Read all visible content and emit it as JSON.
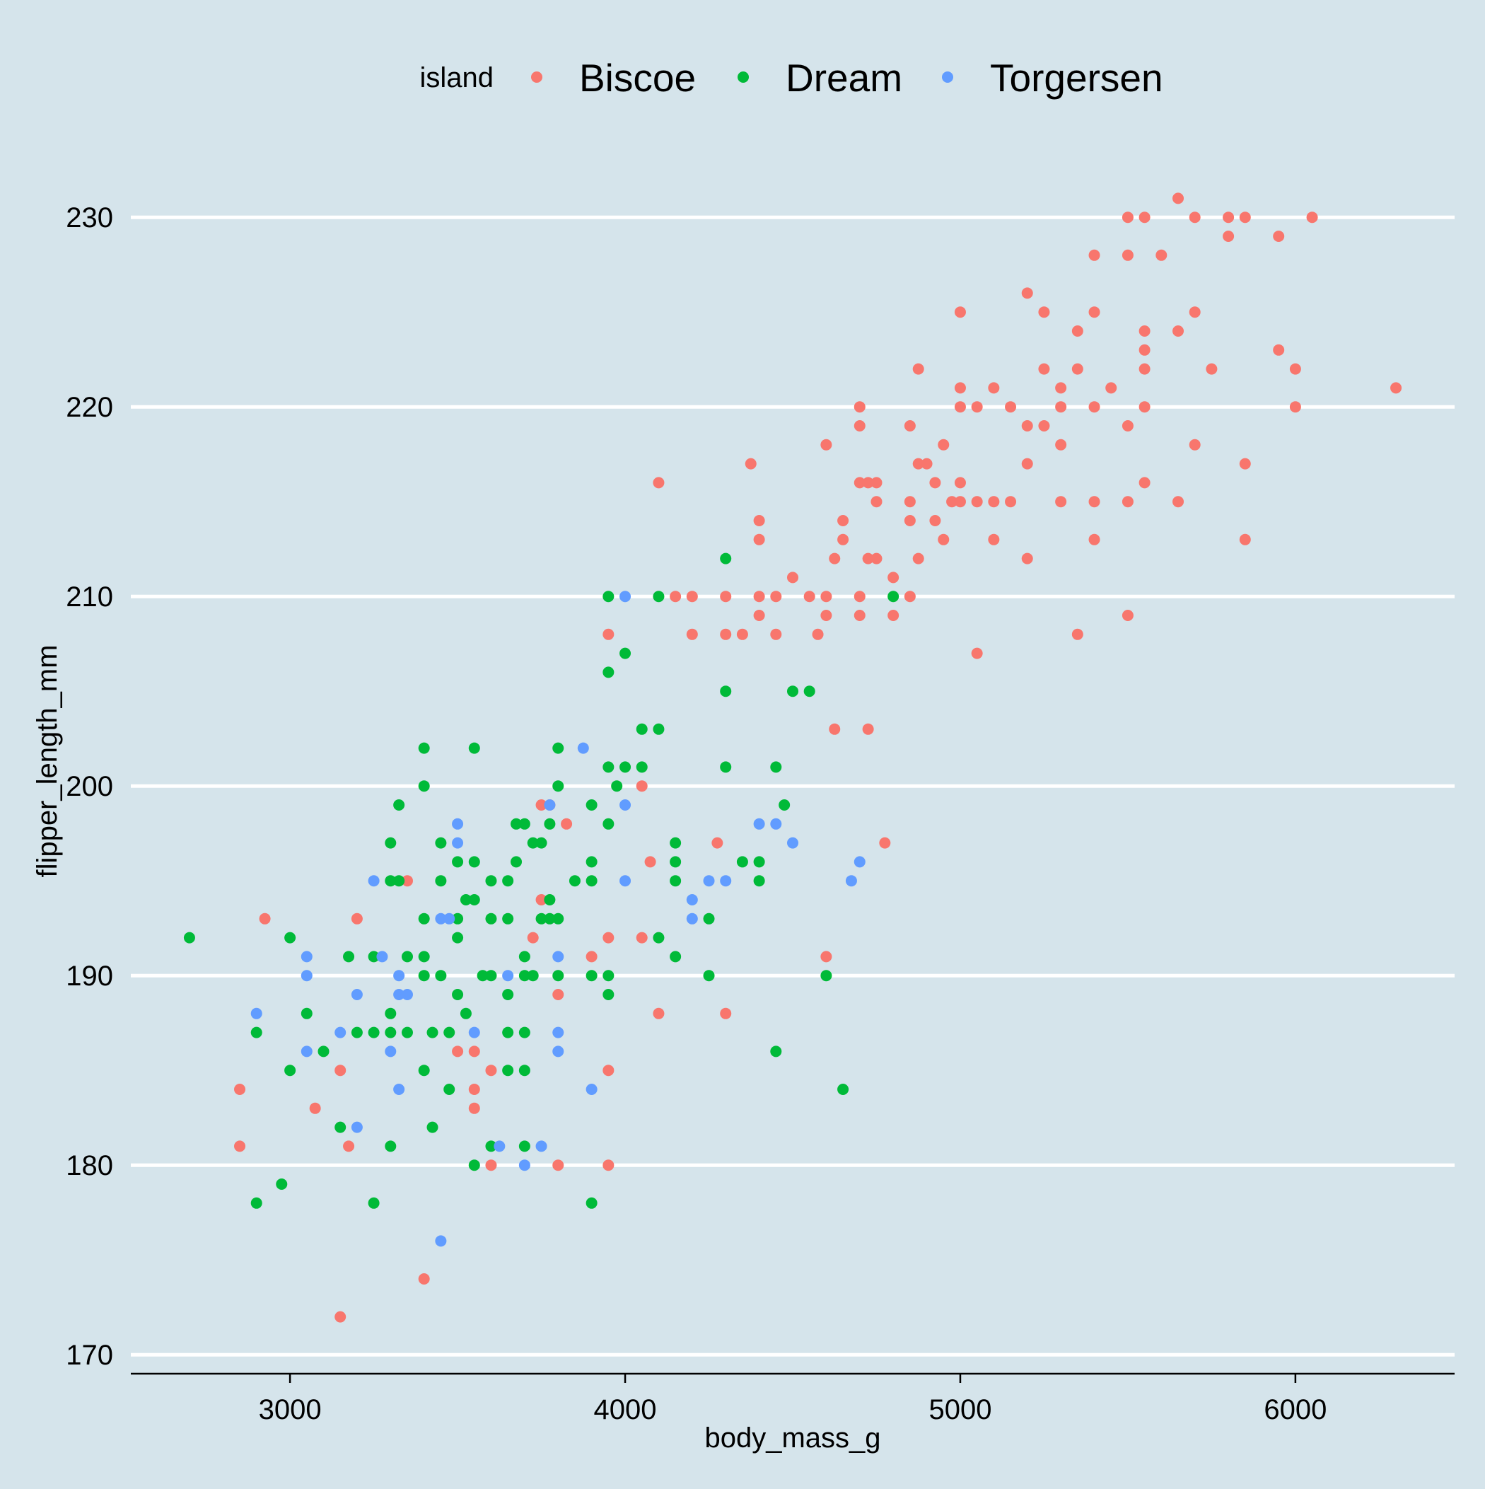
{
  "chart_data": {
    "type": "scatter",
    "title": "",
    "xlabel": "body_mass_g",
    "ylabel": "flipper_length_mm",
    "xlim": [
      2525,
      6475
    ],
    "ylim": [
      169,
      234
    ],
    "xticks": [
      3000,
      4000,
      5000,
      6000
    ],
    "yticks": [
      170,
      180,
      190,
      200,
      210,
      220,
      230
    ],
    "grid": {
      "horizontal_major": true,
      "vertical": false
    },
    "background": "#d5e4eb",
    "legend": {
      "title": "island",
      "placement": "top",
      "entries": [
        "Biscoe",
        "Dream",
        "Torgersen"
      ]
    },
    "series": [
      {
        "name": "Biscoe",
        "color": "#f8766d",
        "points": [
          [
            2850,
            184
          ],
          [
            2850,
            181
          ],
          [
            2925,
            193
          ],
          [
            3075,
            183
          ],
          [
            3150,
            185
          ],
          [
            3150,
            172
          ],
          [
            3175,
            181
          ],
          [
            3200,
            193
          ],
          [
            3350,
            195
          ],
          [
            3400,
            174
          ],
          [
            3500,
            186
          ],
          [
            3550,
            186
          ],
          [
            3550,
            184
          ],
          [
            3550,
            183
          ],
          [
            3600,
            185
          ],
          [
            3600,
            180
          ],
          [
            3725,
            192
          ],
          [
            3750,
            199
          ],
          [
            3750,
            194
          ],
          [
            3775,
            199
          ],
          [
            3800,
            189
          ],
          [
            3800,
            180
          ],
          [
            3825,
            198
          ],
          [
            3900,
            191
          ],
          [
            3950,
            192
          ],
          [
            3950,
            185
          ],
          [
            3950,
            180
          ],
          [
            3950,
            208
          ],
          [
            4050,
            200
          ],
          [
            4050,
            192
          ],
          [
            4075,
            196
          ],
          [
            4100,
            188
          ],
          [
            4100,
            216
          ],
          [
            4150,
            210
          ],
          [
            4200,
            210
          ],
          [
            4200,
            208
          ],
          [
            4275,
            197
          ],
          [
            4300,
            210
          ],
          [
            4300,
            208
          ],
          [
            4300,
            188
          ],
          [
            4350,
            208
          ],
          [
            4375,
            217
          ],
          [
            4400,
            214
          ],
          [
            4400,
            213
          ],
          [
            4400,
            210
          ],
          [
            4400,
            209
          ],
          [
            4450,
            210
          ],
          [
            4450,
            208
          ],
          [
            4500,
            211
          ],
          [
            4550,
            210
          ],
          [
            4575,
            208
          ],
          [
            4600,
            218
          ],
          [
            4600,
            210
          ],
          [
            4600,
            209
          ],
          [
            4600,
            191
          ],
          [
            4625,
            212
          ],
          [
            4625,
            203
          ],
          [
            4650,
            214
          ],
          [
            4650,
            213
          ],
          [
            4700,
            220
          ],
          [
            4700,
            219
          ],
          [
            4700,
            216
          ],
          [
            4700,
            210
          ],
          [
            4700,
            209
          ],
          [
            4725,
            216
          ],
          [
            4725,
            212
          ],
          [
            4725,
            203
          ],
          [
            4750,
            216
          ],
          [
            4750,
            215
          ],
          [
            4750,
            212
          ],
          [
            4775,
            197
          ],
          [
            4800,
            211
          ],
          [
            4800,
            209
          ],
          [
            4850,
            219
          ],
          [
            4850,
            215
          ],
          [
            4850,
            214
          ],
          [
            4850,
            210
          ],
          [
            4875,
            222
          ],
          [
            4875,
            217
          ],
          [
            4875,
            212
          ],
          [
            4900,
            217
          ],
          [
            4925,
            216
          ],
          [
            4925,
            214
          ],
          [
            4950,
            218
          ],
          [
            4950,
            213
          ],
          [
            4975,
            215
          ],
          [
            5000,
            225
          ],
          [
            5000,
            221
          ],
          [
            5000,
            220
          ],
          [
            5000,
            216
          ],
          [
            5000,
            215
          ],
          [
            5050,
            220
          ],
          [
            5050,
            215
          ],
          [
            5050,
            207
          ],
          [
            5100,
            221
          ],
          [
            5100,
            215
          ],
          [
            5100,
            213
          ],
          [
            5150,
            220
          ],
          [
            5150,
            215
          ],
          [
            5200,
            226
          ],
          [
            5200,
            219
          ],
          [
            5200,
            217
          ],
          [
            5200,
            212
          ],
          [
            5250,
            225
          ],
          [
            5250,
            222
          ],
          [
            5250,
            219
          ],
          [
            5300,
            221
          ],
          [
            5300,
            220
          ],
          [
            5300,
            218
          ],
          [
            5300,
            215
          ],
          [
            5350,
            224
          ],
          [
            5350,
            222
          ],
          [
            5350,
            208
          ],
          [
            5400,
            228
          ],
          [
            5400,
            225
          ],
          [
            5400,
            220
          ],
          [
            5400,
            215
          ],
          [
            5400,
            213
          ],
          [
            5450,
            221
          ],
          [
            5500,
            230
          ],
          [
            5500,
            228
          ],
          [
            5500,
            219
          ],
          [
            5500,
            215
          ],
          [
            5500,
            209
          ],
          [
            5550,
            230
          ],
          [
            5550,
            224
          ],
          [
            5550,
            223
          ],
          [
            5550,
            222
          ],
          [
            5550,
            220
          ],
          [
            5550,
            216
          ],
          [
            5600,
            228
          ],
          [
            5650,
            231
          ],
          [
            5650,
            224
          ],
          [
            5650,
            215
          ],
          [
            5700,
            230
          ],
          [
            5700,
            225
          ],
          [
            5700,
            218
          ],
          [
            5750,
            222
          ],
          [
            5800,
            230
          ],
          [
            5800,
            229
          ],
          [
            5850,
            230
          ],
          [
            5850,
            217
          ],
          [
            5850,
            213
          ],
          [
            5950,
            229
          ],
          [
            5950,
            223
          ],
          [
            6000,
            222
          ],
          [
            6000,
            220
          ],
          [
            6050,
            230
          ],
          [
            6300,
            221
          ]
        ]
      },
      {
        "name": "Dream",
        "color": "#00ba38",
        "points": [
          [
            2700,
            192
          ],
          [
            2900,
            187
          ],
          [
            2900,
            178
          ],
          [
            2975,
            179
          ],
          [
            3000,
            192
          ],
          [
            3000,
            185
          ],
          [
            3050,
            188
          ],
          [
            3100,
            186
          ],
          [
            3150,
            182
          ],
          [
            3175,
            191
          ],
          [
            3200,
            187
          ],
          [
            3250,
            191
          ],
          [
            3250,
            187
          ],
          [
            3250,
            178
          ],
          [
            3300,
            197
          ],
          [
            3300,
            195
          ],
          [
            3300,
            188
          ],
          [
            3300,
            187
          ],
          [
            3300,
            181
          ],
          [
            3325,
            199
          ],
          [
            3325,
            195
          ],
          [
            3350,
            191
          ],
          [
            3350,
            187
          ],
          [
            3400,
            202
          ],
          [
            3400,
            200
          ],
          [
            3400,
            193
          ],
          [
            3400,
            191
          ],
          [
            3400,
            190
          ],
          [
            3400,
            185
          ],
          [
            3425,
            182
          ],
          [
            3425,
            187
          ],
          [
            3450,
            197
          ],
          [
            3450,
            195
          ],
          [
            3450,
            190
          ],
          [
            3475,
            187
          ],
          [
            3475,
            184
          ],
          [
            3500,
            196
          ],
          [
            3500,
            193
          ],
          [
            3500,
            192
          ],
          [
            3500,
            189
          ],
          [
            3525,
            194
          ],
          [
            3525,
            188
          ],
          [
            3550,
            202
          ],
          [
            3550,
            196
          ],
          [
            3550,
            194
          ],
          [
            3550,
            180
          ],
          [
            3575,
            190
          ],
          [
            3600,
            195
          ],
          [
            3600,
            193
          ],
          [
            3600,
            190
          ],
          [
            3600,
            181
          ],
          [
            3650,
            195
          ],
          [
            3650,
            193
          ],
          [
            3650,
            189
          ],
          [
            3650,
            187
          ],
          [
            3650,
            185
          ],
          [
            3675,
            198
          ],
          [
            3675,
            196
          ],
          [
            3700,
            198
          ],
          [
            3700,
            191
          ],
          [
            3700,
            190
          ],
          [
            3700,
            187
          ],
          [
            3700,
            185
          ],
          [
            3700,
            181
          ],
          [
            3725,
            197
          ],
          [
            3725,
            190
          ],
          [
            3750,
            197
          ],
          [
            3750,
            193
          ],
          [
            3775,
            198
          ],
          [
            3775,
            194
          ],
          [
            3775,
            193
          ],
          [
            3800,
            202
          ],
          [
            3800,
            200
          ],
          [
            3800,
            193
          ],
          [
            3800,
            190
          ],
          [
            3850,
            195
          ],
          [
            3900,
            199
          ],
          [
            3900,
            196
          ],
          [
            3900,
            195
          ],
          [
            3900,
            190
          ],
          [
            3900,
            178
          ],
          [
            3950,
            210
          ],
          [
            3950,
            206
          ],
          [
            3950,
            201
          ],
          [
            3950,
            198
          ],
          [
            3950,
            190
          ],
          [
            3950,
            189
          ],
          [
            3975,
            200
          ],
          [
            4000,
            207
          ],
          [
            4000,
            201
          ],
          [
            4050,
            203
          ],
          [
            4050,
            201
          ],
          [
            4100,
            210
          ],
          [
            4100,
            203
          ],
          [
            4100,
            192
          ],
          [
            4150,
            197
          ],
          [
            4150,
            196
          ],
          [
            4150,
            195
          ],
          [
            4150,
            191
          ],
          [
            4250,
            193
          ],
          [
            4250,
            190
          ],
          [
            4300,
            212
          ],
          [
            4300,
            205
          ],
          [
            4300,
            201
          ],
          [
            4350,
            196
          ],
          [
            4400,
            196
          ],
          [
            4400,
            195
          ],
          [
            4450,
            201
          ],
          [
            4450,
            186
          ],
          [
            4475,
            199
          ],
          [
            4500,
            205
          ],
          [
            4550,
            205
          ],
          [
            4600,
            190
          ],
          [
            4650,
            184
          ],
          [
            4800,
            210
          ]
        ]
      },
      {
        "name": "Torgersen",
        "color": "#619cff",
        "points": [
          [
            2900,
            188
          ],
          [
            3050,
            191
          ],
          [
            3050,
            190
          ],
          [
            3050,
            186
          ],
          [
            3150,
            187
          ],
          [
            3200,
            189
          ],
          [
            3200,
            182
          ],
          [
            3250,
            195
          ],
          [
            3275,
            191
          ],
          [
            3300,
            186
          ],
          [
            3325,
            190
          ],
          [
            3325,
            189
          ],
          [
            3325,
            184
          ],
          [
            3350,
            189
          ],
          [
            3450,
            193
          ],
          [
            3450,
            176
          ],
          [
            3475,
            193
          ],
          [
            3500,
            198
          ],
          [
            3500,
            197
          ],
          [
            3550,
            187
          ],
          [
            3625,
            181
          ],
          [
            3650,
            190
          ],
          [
            3700,
            180
          ],
          [
            3750,
            181
          ],
          [
            3775,
            199
          ],
          [
            3800,
            191
          ],
          [
            3800,
            187
          ],
          [
            3800,
            186
          ],
          [
            3875,
            202
          ],
          [
            3900,
            184
          ],
          [
            4000,
            210
          ],
          [
            4000,
            199
          ],
          [
            4000,
            195
          ],
          [
            4200,
            194
          ],
          [
            4200,
            193
          ],
          [
            4250,
            195
          ],
          [
            4300,
            195
          ],
          [
            4400,
            198
          ],
          [
            4450,
            198
          ],
          [
            4500,
            197
          ],
          [
            4675,
            195
          ],
          [
            4700,
            196
          ]
        ]
      }
    ]
  }
}
